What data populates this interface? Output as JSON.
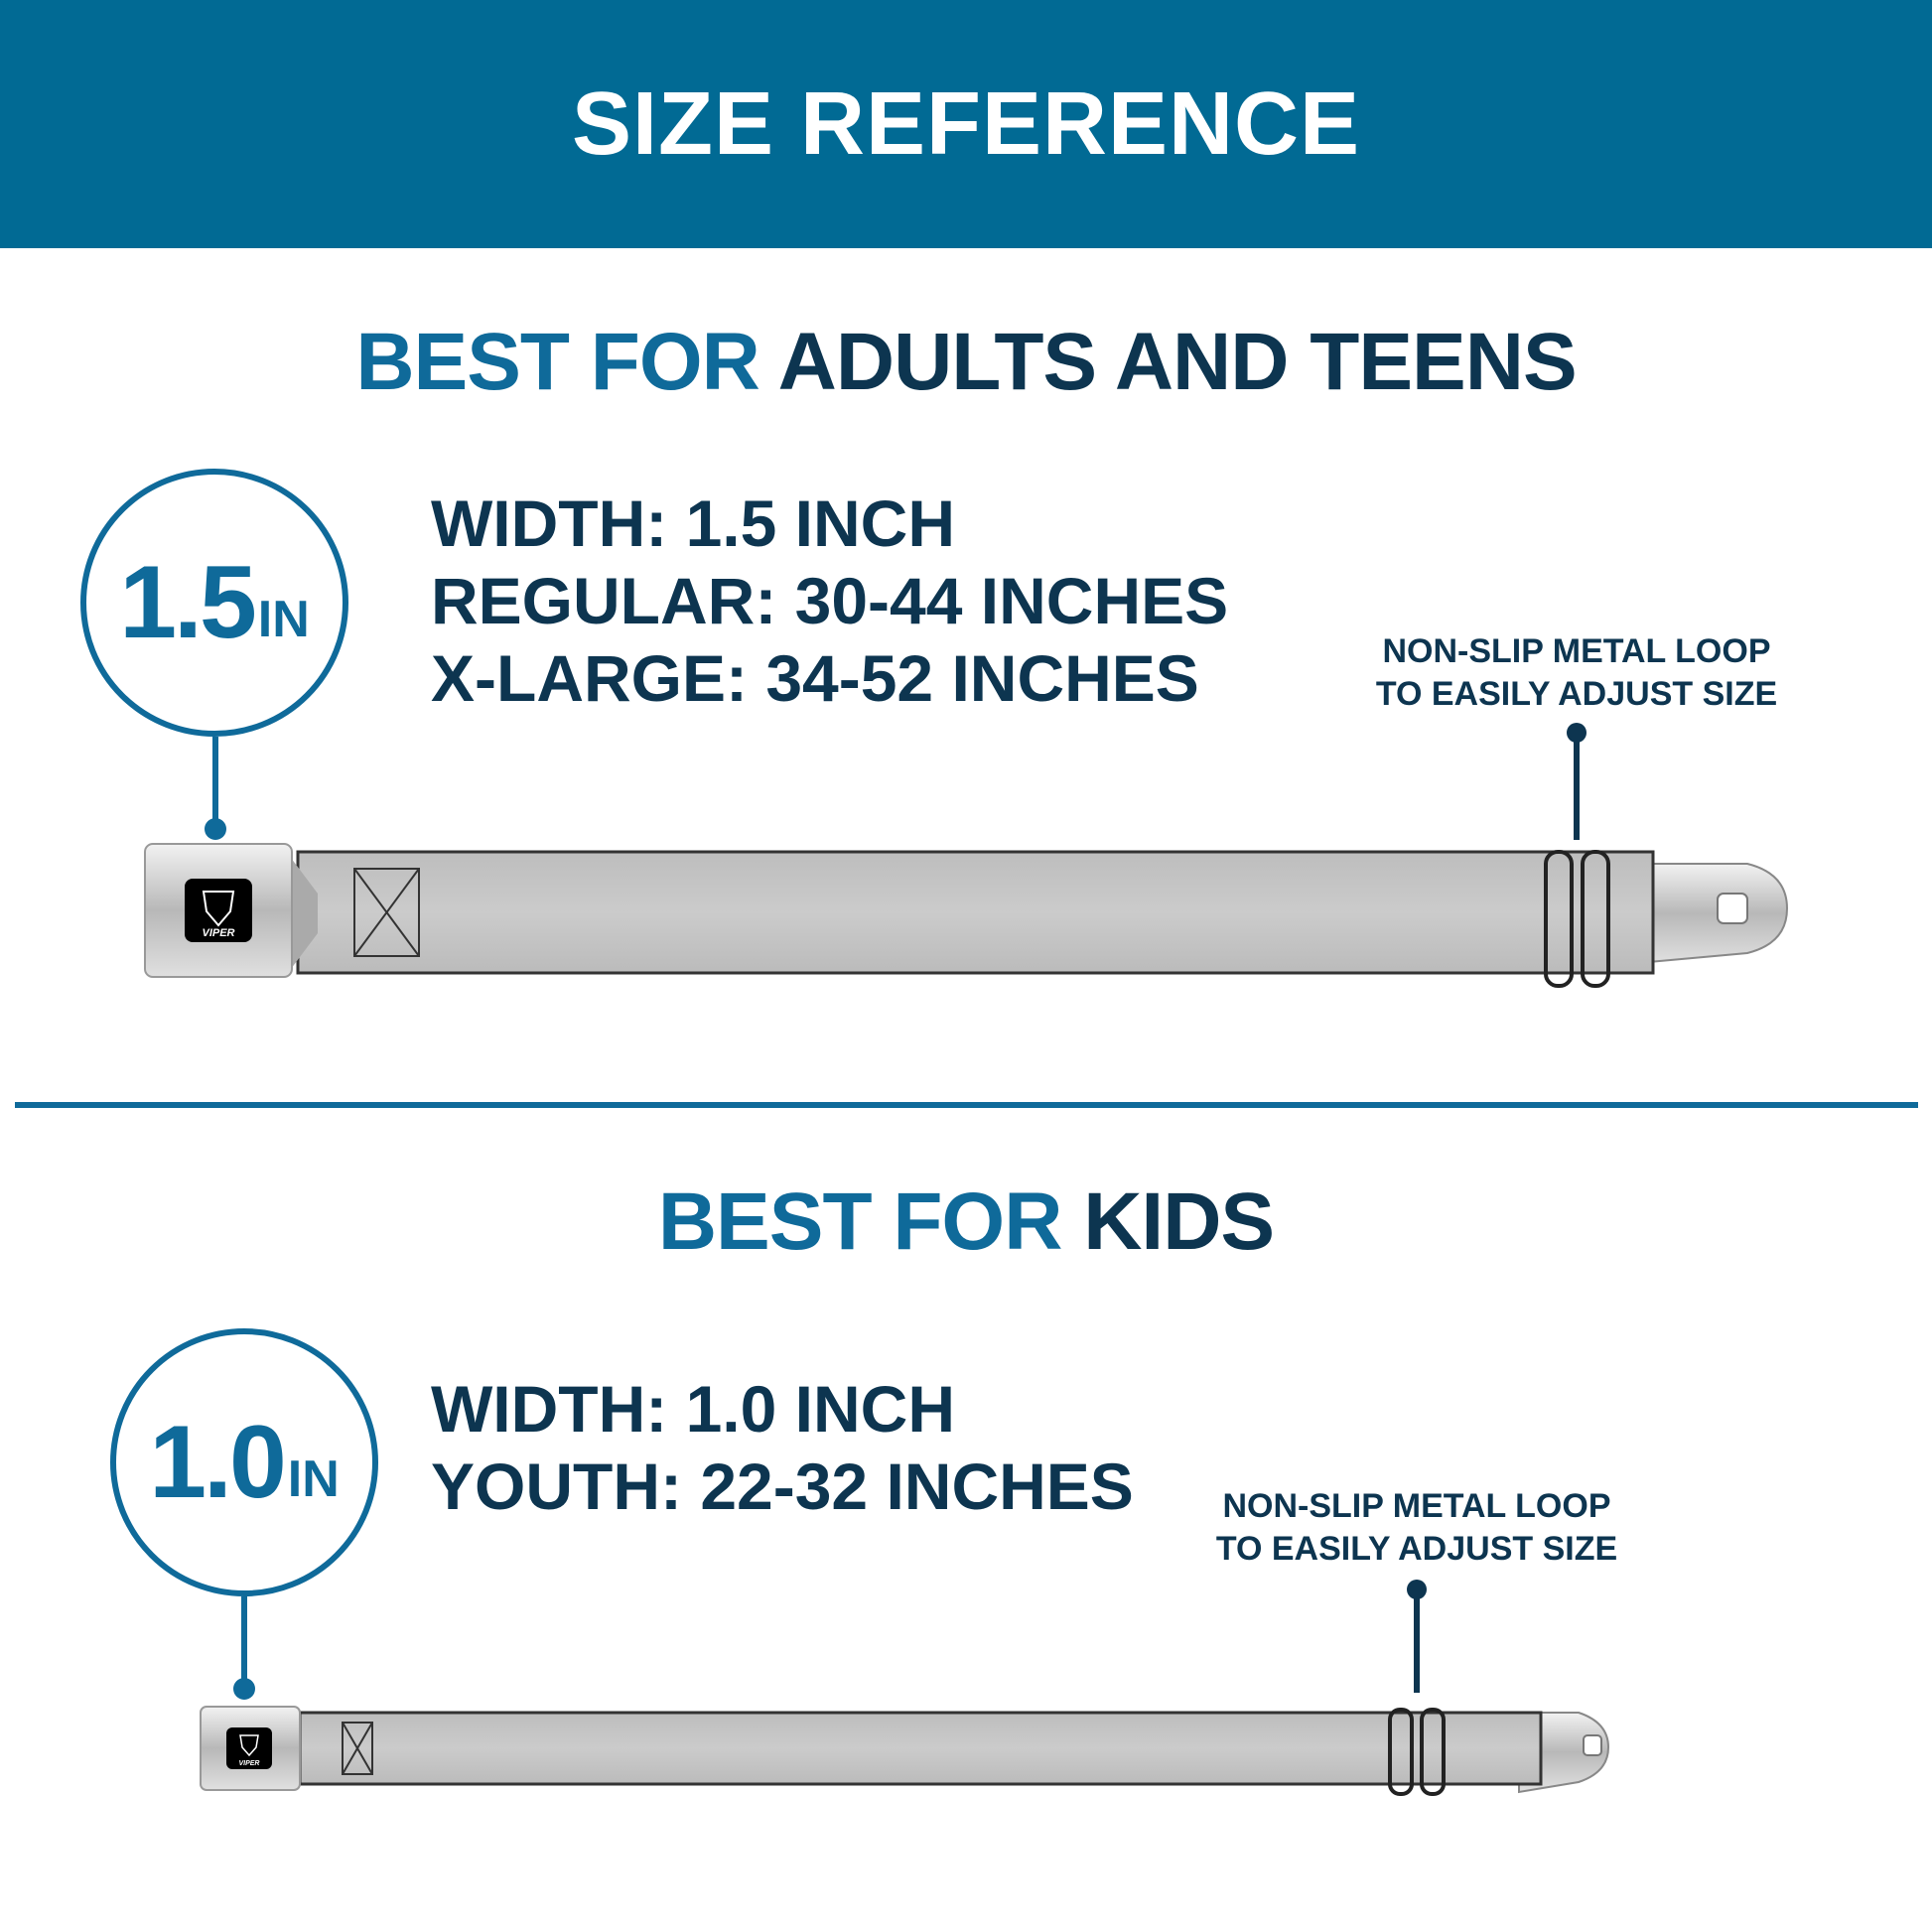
{
  "header": {
    "title": "SIZE REFERENCE"
  },
  "adult": {
    "heading_accent": "BEST FOR",
    "heading_main": "ADULTS AND TEENS",
    "badge_value": "1.5",
    "badge_unit": "IN",
    "specs": [
      "WIDTH: 1.5 INCH",
      "REGULAR: 30-44 INCHES",
      "X-LARGE: 34-52 INCHES"
    ],
    "note": [
      "NON-SLIP METAL LOOP",
      "TO EASILY ADJUST SIZE"
    ],
    "buckle_logo": "VIPER"
  },
  "kids": {
    "heading_accent": "BEST FOR",
    "heading_main": "KIDS",
    "badge_value": "1.0",
    "badge_unit": "IN",
    "specs": [
      "WIDTH: 1.0 INCH",
      "YOUTH: 22-32 INCHES"
    ],
    "note": [
      "NON-SLIP METAL LOOP",
      "TO EASILY ADJUST SIZE"
    ],
    "buckle_logo": "VIPER"
  },
  "colors": {
    "brand_blue": "#016a94",
    "accent_blue": "#0f6a9a",
    "navy": "#0d3550",
    "strap_gray": "#c3c3c3"
  }
}
